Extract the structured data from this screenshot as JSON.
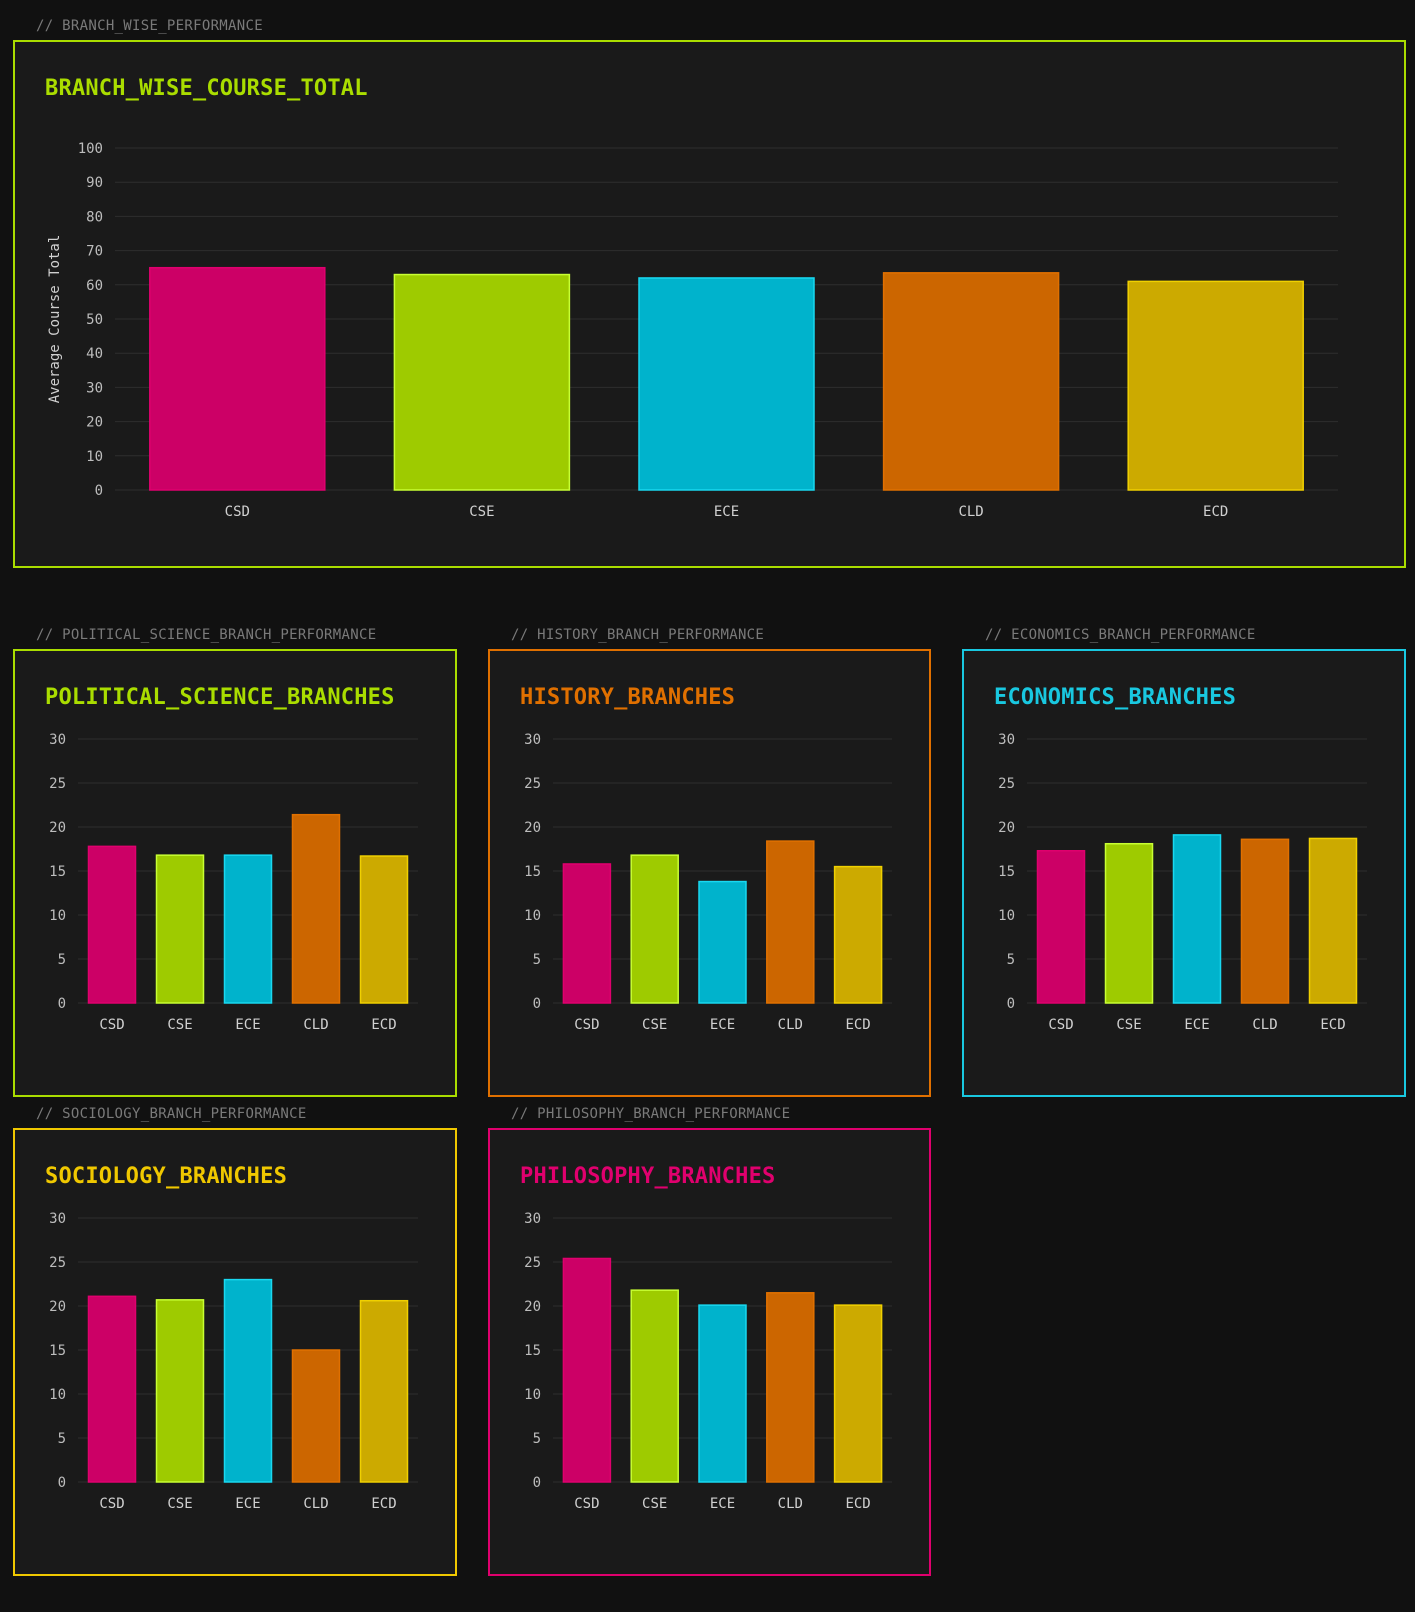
{
  "colors": {
    "background": "#111111",
    "panel": "#1a1a1a",
    "grid": "#2e2e2e",
    "lime": "#aadd00",
    "orange": "#e07000",
    "cyan": "#00c8e0",
    "yellow": "#f0c800",
    "magenta": "#e0006e",
    "bars": [
      "#cc0066",
      "#9ecb00",
      "#00b3cc",
      "#cc6600",
      "#ccaa00"
    ],
    "bar_borders": [
      "#e0006e",
      "#c8ff33",
      "#19d8f0",
      "#e07000",
      "#f0d000"
    ]
  },
  "panels": [
    {
      "id": "branch-wise",
      "section_label": "//  BRANCH_WISE_PERFORMANCE",
      "title": "BRANCH_WISE_COURSE_TOTAL",
      "title_color": "#aadd00",
      "border_color": "#aadd00"
    },
    {
      "id": "political-science",
      "section_label": "//  POLITICAL_SCIENCE_BRANCH_PERFORMANCE",
      "title": "POLITICAL_SCIENCE_BRANCHES",
      "title_color": "#aadd00",
      "border_color": "#aadd00"
    },
    {
      "id": "history",
      "section_label": "//  HISTORY_BRANCH_PERFORMANCE",
      "title": "HISTORY_BRANCHES",
      "title_color": "#e07000",
      "border_color": "#e07000"
    },
    {
      "id": "economics",
      "section_label": "//  ECONOMICS_BRANCH_PERFORMANCE",
      "title": "ECONOMICS_BRANCHES",
      "title_color": "#19c8e0",
      "border_color": "#19c8e0"
    },
    {
      "id": "sociology",
      "section_label": "//  SOCIOLOGY_BRANCH_PERFORMANCE",
      "title": "SOCIOLOGY_BRANCHES",
      "title_color": "#f0c800",
      "border_color": "#f0c800"
    },
    {
      "id": "philosophy",
      "section_label": "//  PHILOSOPHY_BRANCH_PERFORMANCE",
      "title": "PHILOSOPHY_BRANCHES",
      "title_color": "#e0006e",
      "border_color": "#e0006e"
    }
  ],
  "chart_data": [
    {
      "type": "bar",
      "title": "BRANCH_WISE_COURSE_TOTAL",
      "categories": [
        "CSD",
        "CSE",
        "ECE",
        "CLD",
        "ECD"
      ],
      "values": [
        65,
        63,
        62,
        63.5,
        61
      ],
      "ylabel": "Average Course Total",
      "xlabel": "",
      "ylim": [
        0,
        100
      ],
      "yticks": [
        0,
        10,
        20,
        30,
        40,
        50,
        60,
        70,
        80,
        90,
        100
      ],
      "grid": true
    },
    {
      "type": "bar",
      "title": "POLITICAL_SCIENCE_BRANCHES",
      "categories": [
        "CSD",
        "CSE",
        "ECE",
        "CLD",
        "ECD"
      ],
      "values": [
        17.8,
        16.8,
        16.8,
        21.4,
        16.7
      ],
      "ylim": [
        0,
        30
      ],
      "yticks": [
        0,
        5,
        10,
        15,
        20,
        25,
        30
      ],
      "grid": true
    },
    {
      "type": "bar",
      "title": "HISTORY_BRANCHES",
      "categories": [
        "CSD",
        "CSE",
        "ECE",
        "CLD",
        "ECD"
      ],
      "values": [
        15.8,
        16.8,
        13.8,
        18.4,
        15.5
      ],
      "ylim": [
        0,
        30
      ],
      "yticks": [
        0,
        5,
        10,
        15,
        20,
        25,
        30
      ],
      "grid": true
    },
    {
      "type": "bar",
      "title": "ECONOMICS_BRANCHES",
      "categories": [
        "CSD",
        "CSE",
        "ECE",
        "CLD",
        "ECD"
      ],
      "values": [
        17.3,
        18.1,
        19.1,
        18.6,
        18.7
      ],
      "ylim": [
        0,
        30
      ],
      "yticks": [
        0,
        5,
        10,
        15,
        20,
        25,
        30
      ],
      "grid": true
    },
    {
      "type": "bar",
      "title": "SOCIOLOGY_BRANCHES",
      "categories": [
        "CSD",
        "CSE",
        "ECE",
        "CLD",
        "ECD"
      ],
      "values": [
        21.1,
        20.7,
        23.0,
        15.0,
        20.6
      ],
      "ylim": [
        0,
        30
      ],
      "yticks": [
        0,
        5,
        10,
        15,
        20,
        25,
        30
      ],
      "grid": true
    },
    {
      "type": "bar",
      "title": "PHILOSOPHY_BRANCHES",
      "categories": [
        "CSD",
        "CSE",
        "ECE",
        "CLD",
        "ECD"
      ],
      "values": [
        25.4,
        21.8,
        20.1,
        21.5,
        20.1
      ],
      "ylim": [
        0,
        30
      ],
      "yticks": [
        0,
        5,
        10,
        15,
        20,
        25,
        30
      ],
      "grid": true
    }
  ]
}
